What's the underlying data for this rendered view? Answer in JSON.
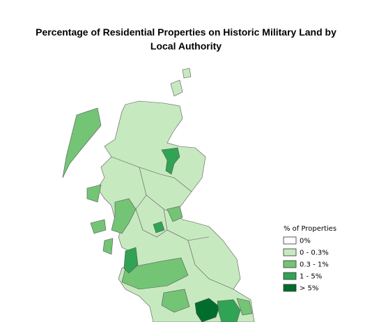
{
  "title": "Percentage of Residential Properties on Historic Military Land by Local Authority",
  "legend": {
    "title": "% of Properties",
    "items": [
      {
        "label": "0%",
        "color": "#ffffff"
      },
      {
        "label": "0 - 0.3%",
        "color": "#c7e9c0"
      },
      {
        "label": "0.3 - 1%",
        "color": "#74c476"
      },
      {
        "label": "1 - 5%",
        "color": "#31a354"
      },
      {
        "label": "> 5%",
        "color": "#006d2c"
      }
    ]
  }
}
